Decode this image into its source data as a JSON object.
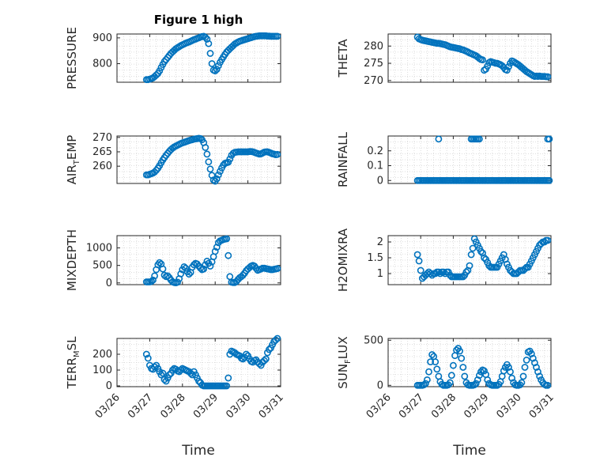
{
  "figure": {
    "title": "Figure 1 high",
    "xlabel": "Time",
    "marker_color": "#0072BD",
    "marker": "circle-open",
    "grid": "minor dotted",
    "x_ticks": [
      "03/26",
      "03/27",
      "03/28",
      "03/29",
      "03/30",
      "03/31"
    ],
    "x_tick_rotation_deg": 45
  },
  "chart_data": [
    {
      "type": "scatter",
      "ylabel": "PRESSURE",
      "ylim": [
        728,
        915
      ],
      "yticks": [
        800,
        900
      ],
      "xlim": [
        0,
        5
      ],
      "x": [
        0.9,
        0.95,
        1.0,
        1.05,
        1.1,
        1.15,
        1.2,
        1.25,
        1.3,
        1.35,
        1.4,
        1.45,
        1.5,
        1.55,
        1.6,
        1.65,
        1.7,
        1.75,
        1.8,
        1.85,
        1.9,
        1.95,
        2.0,
        2.05,
        2.1,
        2.15,
        2.2,
        2.25,
        2.3,
        2.35,
        2.4,
        2.45,
        2.5,
        2.55,
        2.6,
        2.65,
        2.7,
        2.75,
        2.8,
        2.85,
        2.9,
        2.95,
        3.0,
        3.05,
        3.1,
        3.15,
        3.2,
        3.25,
        3.3,
        3.35,
        3.4,
        3.45,
        3.5,
        3.55,
        3.6,
        3.65,
        3.7,
        3.75,
        3.8,
        3.85,
        3.9,
        3.95,
        4.0,
        4.05,
        4.1,
        4.15,
        4.2,
        4.25,
        4.3,
        4.35,
        4.4,
        4.45,
        4.5,
        4.55,
        4.6,
        4.65,
        4.7,
        4.75,
        4.8,
        4.85,
        4.9
      ],
      "y": [
        738,
        738,
        740,
        742,
        745,
        750,
        756,
        762,
        772,
        785,
        797,
        808,
        816,
        824,
        832,
        840,
        846,
        852,
        858,
        862,
        866,
        870,
        873,
        876,
        879,
        882,
        884,
        887,
        890,
        893,
        895,
        898,
        900,
        903,
        905,
        906,
        902,
        895,
        878,
        840,
        800,
        775,
        772,
        778,
        792,
        805,
        816,
        826,
        836,
        845,
        852,
        858,
        864,
        870,
        876,
        880,
        884,
        887,
        889,
        891,
        893,
        895,
        897,
        899,
        901,
        903,
        905,
        906,
        907,
        908,
        908,
        908,
        908,
        908,
        907,
        907,
        906,
        906,
        906,
        906,
        906
      ]
    },
    {
      "type": "scatter",
      "ylabel": "THETA",
      "ylim": [
        269.5,
        283.5
      ],
      "yticks": [
        270,
        275,
        280
      ],
      "xlim": [
        0,
        5
      ],
      "x": [
        0.9,
        0.95,
        1.0,
        1.05,
        1.1,
        1.15,
        1.2,
        1.25,
        1.3,
        1.35,
        1.4,
        1.45,
        1.5,
        1.55,
        1.6,
        1.65,
        1.7,
        1.75,
        1.8,
        1.85,
        1.9,
        1.95,
        2.0,
        2.05,
        2.1,
        2.15,
        2.2,
        2.25,
        2.3,
        2.35,
        2.4,
        2.45,
        2.5,
        2.55,
        2.6,
        2.65,
        2.7,
        2.75,
        2.8,
        2.85,
        2.9,
        2.95,
        3.0,
        3.05,
        3.1,
        3.15,
        3.2,
        3.25,
        3.3,
        3.35,
        3.4,
        3.45,
        3.5,
        3.55,
        3.6,
        3.65,
        3.7,
        3.75,
        3.8,
        3.85,
        3.9,
        3.95,
        4.0,
        4.05,
        4.1,
        4.15,
        4.2,
        4.25,
        4.3,
        4.35,
        4.4,
        4.45,
        4.5,
        4.55,
        4.6,
        4.65,
        4.7,
        4.75,
        4.8,
        4.85,
        4.9
      ],
      "y": [
        282.6,
        282.1,
        281.9,
        281.7,
        281.6,
        281.5,
        281.4,
        281.3,
        281.2,
        281.1,
        281.0,
        280.9,
        280.8,
        280.8,
        280.7,
        280.6,
        280.5,
        280.4,
        280.2,
        280.0,
        279.8,
        279.7,
        279.6,
        279.5,
        279.4,
        279.3,
        279.2,
        279.0,
        278.9,
        278.7,
        278.5,
        278.3,
        278.0,
        277.8,
        277.6,
        277.4,
        277.2,
        276.8,
        276.4,
        276.1,
        276.0,
        273.0,
        273.3,
        274.2,
        275.2,
        275.5,
        275.3,
        275.2,
        275.0,
        275.0,
        274.8,
        274.6,
        274.3,
        273.8,
        273.2,
        273.0,
        274.0,
        275.0,
        275.7,
        275.5,
        275.2,
        274.9,
        274.6,
        274.2,
        273.8,
        273.4,
        273.0,
        272.6,
        272.3,
        272.0,
        271.7,
        271.4,
        271.2,
        271.3,
        271.2,
        271.3,
        271.2,
        271.2,
        271.2,
        271.1,
        271.1
      ]
    },
    {
      "type": "scatter",
      "ylabel": "AIR_TEMP",
      "ylim": [
        254,
        270.5
      ],
      "yticks": [
        260,
        265,
        270
      ],
      "xlim": [
        0,
        5
      ],
      "x": [
        0.9,
        0.95,
        1.0,
        1.05,
        1.1,
        1.15,
        1.2,
        1.25,
        1.3,
        1.35,
        1.4,
        1.45,
        1.5,
        1.55,
        1.6,
        1.65,
        1.7,
        1.75,
        1.8,
        1.85,
        1.9,
        1.95,
        2.0,
        2.05,
        2.1,
        2.15,
        2.2,
        2.25,
        2.3,
        2.35,
        2.4,
        2.45,
        2.5,
        2.55,
        2.6,
        2.65,
        2.7,
        2.75,
        2.8,
        2.85,
        2.9,
        2.95,
        3.0,
        3.05,
        3.1,
        3.15,
        3.2,
        3.25,
        3.3,
        3.35,
        3.4,
        3.45,
        3.5,
        3.55,
        3.6,
        3.65,
        3.7,
        3.75,
        3.8,
        3.85,
        3.9,
        3.95,
        4.0,
        4.05,
        4.1,
        4.15,
        4.2,
        4.25,
        4.3,
        4.35,
        4.4,
        4.45,
        4.5,
        4.55,
        4.6,
        4.65,
        4.7,
        4.75,
        4.8,
        4.85,
        4.9
      ],
      "y": [
        257.0,
        257.0,
        257.2,
        257.4,
        257.6,
        258.0,
        258.6,
        259.3,
        260.2,
        261.2,
        262.2,
        263.0,
        263.8,
        264.5,
        265.2,
        265.8,
        266.3,
        266.7,
        267.0,
        267.3,
        267.6,
        267.9,
        268.1,
        268.3,
        268.5,
        268.7,
        268.9,
        269.1,
        269.2,
        269.4,
        269.5,
        269.6,
        269.7,
        269.6,
        269.2,
        268.2,
        266.5,
        264.2,
        261.5,
        259.0,
        256.8,
        255.2,
        254.8,
        255.6,
        257.0,
        258.2,
        259.4,
        260.4,
        261.0,
        261.2,
        261.4,
        262.5,
        263.8,
        264.5,
        264.8,
        264.9,
        265.0,
        265.0,
        265.0,
        265.0,
        265.0,
        265.0,
        265.0,
        265.1,
        265.1,
        265.0,
        264.8,
        264.6,
        264.4,
        264.2,
        264.3,
        264.6,
        264.9,
        265.0,
        265.0,
        264.8,
        264.6,
        264.3,
        264.2,
        264.0,
        264.1
      ]
    },
    {
      "type": "scatter",
      "ylabel": "RAINFALL",
      "ylim": [
        -0.02,
        0.3
      ],
      "yticks": [
        0,
        0.1,
        0.2
      ],
      "xlim": [
        0,
        5
      ],
      "baseline": {
        "value": 0,
        "x_from": 0.9,
        "x_to": 4.95,
        "step": 0.05
      },
      "x": [
        1.55,
        2.55,
        2.6,
        2.65,
        2.7,
        2.75,
        2.8,
        4.9,
        4.95
      ],
      "y": [
        0.28,
        0.28,
        0.28,
        0.28,
        0.28,
        0.28,
        0.28,
        0.28,
        0.28
      ]
    },
    {
      "type": "scatter",
      "ylabel": "MIXDEPTH",
      "ylim": [
        -50,
        1350
      ],
      "yticks": [
        0,
        500,
        1000
      ],
      "xlim": [
        0,
        5
      ],
      "x": [
        0.9,
        0.95,
        1.0,
        1.05,
        1.1,
        1.15,
        1.2,
        1.25,
        1.3,
        1.35,
        1.4,
        1.45,
        1.5,
        1.55,
        1.6,
        1.65,
        1.7,
        1.75,
        1.8,
        1.85,
        1.9,
        1.95,
        2.0,
        2.05,
        2.1,
        2.15,
        2.2,
        2.25,
        2.3,
        2.35,
        2.4,
        2.45,
        2.5,
        2.55,
        2.6,
        2.65,
        2.7,
        2.75,
        2.8,
        2.85,
        2.9,
        2.95,
        3.0,
        3.05,
        3.1,
        3.15,
        3.2,
        3.25,
        3.3,
        3.35,
        3.4,
        3.45,
        3.5,
        3.55,
        3.6,
        3.65,
        3.7,
        3.75,
        3.8,
        3.85,
        3.9,
        3.95,
        4.0,
        4.05,
        4.1,
        4.15,
        4.2,
        4.25,
        4.3,
        4.35,
        4.4,
        4.45,
        4.5,
        4.55,
        4.6,
        4.65,
        4.7,
        4.75,
        4.8,
        4.85,
        4.9
      ],
      "y": [
        30,
        30,
        30,
        40,
        80,
        200,
        380,
        520,
        580,
        540,
        400,
        220,
        180,
        200,
        150,
        80,
        30,
        10,
        5,
        20,
        120,
        260,
        380,
        460,
        420,
        320,
        250,
        300,
        450,
        520,
        560,
        540,
        480,
        420,
        380,
        400,
        520,
        620,
        560,
        480,
        600,
        750,
        900,
        1020,
        1150,
        1200,
        1220,
        1240,
        1250,
        1260,
        780,
        180,
        20,
        10,
        10,
        40,
        100,
        150,
        180,
        220,
        280,
        350,
        400,
        440,
        480,
        500,
        480,
        420,
        360,
        380,
        400,
        420,
        420,
        410,
        400,
        390,
        380,
        380,
        390,
        400,
        410
      ]
    },
    {
      "type": "scatter",
      "ylabel": "H2OMIXRA",
      "ylim": [
        0.65,
        2.2
      ],
      "yticks": [
        1,
        1.5,
        2
      ],
      "xlim": [
        0,
        5
      ],
      "x": [
        0.9,
        0.95,
        1.0,
        1.05,
        1.1,
        1.15,
        1.2,
        1.25,
        1.3,
        1.35,
        1.4,
        1.45,
        1.5,
        1.55,
        1.6,
        1.65,
        1.7,
        1.75,
        1.8,
        1.85,
        1.9,
        1.95,
        2.0,
        2.05,
        2.1,
        2.15,
        2.2,
        2.25,
        2.3,
        2.35,
        2.4,
        2.45,
        2.5,
        2.55,
        2.6,
        2.65,
        2.7,
        2.75,
        2.8,
        2.85,
        2.9,
        2.95,
        3.0,
        3.05,
        3.1,
        3.15,
        3.2,
        3.25,
        3.3,
        3.35,
        3.4,
        3.45,
        3.5,
        3.55,
        3.6,
        3.65,
        3.7,
        3.75,
        3.8,
        3.85,
        3.9,
        3.95,
        4.0,
        4.05,
        4.1,
        4.15,
        4.2,
        4.25,
        4.3,
        4.35,
        4.4,
        4.45,
        4.5,
        4.55,
        4.6,
        4.65,
        4.7,
        4.75,
        4.8,
        4.85,
        4.9
      ],
      "y": [
        1.6,
        1.4,
        1.1,
        0.85,
        0.9,
        0.95,
        1.0,
        1.05,
        1.0,
        0.95,
        1.0,
        1.0,
        1.05,
        1.05,
        1.0,
        1.05,
        1.05,
        1.0,
        1.05,
        1.05,
        0.95,
        0.9,
        0.9,
        0.9,
        0.9,
        0.9,
        0.9,
        0.9,
        0.9,
        0.95,
        1.05,
        1.1,
        1.25,
        1.6,
        1.8,
        2.1,
        2.0,
        1.9,
        1.8,
        1.7,
        1.65,
        1.5,
        1.45,
        1.35,
        1.25,
        1.2,
        1.2,
        1.2,
        1.2,
        1.2,
        1.3,
        1.4,
        1.5,
        1.6,
        1.45,
        1.3,
        1.2,
        1.1,
        1.05,
        1.0,
        1.0,
        1.0,
        1.05,
        1.1,
        1.1,
        1.1,
        1.15,
        1.2,
        1.2,
        1.3,
        1.4,
        1.5,
        1.6,
        1.7,
        1.8,
        1.9,
        1.95,
        2.0,
        2.0,
        2.05,
        2.05
      ]
    },
    {
      "type": "scatter",
      "ylabel": "TERR_MSL",
      "ylim": [
        -5,
        300
      ],
      "yticks": [
        0,
        100,
        200
      ],
      "xlim": [
        0,
        5
      ],
      "x": [
        0.9,
        0.95,
        1.0,
        1.05,
        1.1,
        1.15,
        1.2,
        1.25,
        1.3,
        1.35,
        1.4,
        1.45,
        1.5,
        1.55,
        1.6,
        1.65,
        1.7,
        1.75,
        1.8,
        1.85,
        1.9,
        1.95,
        2.0,
        2.05,
        2.1,
        2.15,
        2.2,
        2.25,
        2.3,
        2.35,
        2.4,
        2.45,
        2.5,
        2.55,
        2.6,
        2.65,
        2.7,
        2.75,
        2.8,
        2.85,
        2.9,
        2.95,
        3.0,
        3.05,
        3.1,
        3.15,
        3.2,
        3.25,
        3.3,
        3.35,
        3.4,
        3.45,
        3.5,
        3.55,
        3.6,
        3.65,
        3.7,
        3.75,
        3.8,
        3.85,
        3.9,
        3.95,
        4.0,
        4.05,
        4.1,
        4.15,
        4.2,
        4.25,
        4.3,
        4.35,
        4.4,
        4.45,
        4.5,
        4.55,
        4.6,
        4.65,
        4.7,
        4.75,
        4.8,
        4.85,
        4.9
      ],
      "y": [
        200,
        175,
        130,
        110,
        105,
        120,
        130,
        110,
        90,
        70,
        80,
        40,
        30,
        50,
        70,
        80,
        100,
        110,
        105,
        95,
        90,
        100,
        110,
        105,
        100,
        95,
        90,
        80,
        70,
        90,
        70,
        50,
        30,
        20,
        5,
        0,
        0,
        0,
        0,
        0,
        0,
        0,
        0,
        0,
        0,
        0,
        0,
        0,
        0,
        0,
        50,
        200,
        220,
        215,
        210,
        200,
        195,
        190,
        175,
        170,
        180,
        200,
        190,
        170,
        155,
        150,
        160,
        165,
        150,
        140,
        130,
        150,
        160,
        170,
        210,
        230,
        240,
        260,
        280,
        290,
        300
      ]
    },
    {
      "type": "scatter",
      "ylabel": "SUN_FLUX",
      "ylim": [
        -15,
        520
      ],
      "yticks": [
        0,
        500
      ],
      "xlim": [
        0,
        5
      ],
      "x": [
        0.9,
        0.95,
        1.0,
        1.05,
        1.1,
        1.15,
        1.2,
        1.25,
        1.3,
        1.35,
        1.4,
        1.45,
        1.5,
        1.55,
        1.6,
        1.65,
        1.7,
        1.75,
        1.8,
        1.85,
        1.9,
        1.95,
        2.0,
        2.05,
        2.1,
        2.15,
        2.2,
        2.25,
        2.3,
        2.35,
        2.4,
        2.45,
        2.5,
        2.55,
        2.6,
        2.65,
        2.7,
        2.75,
        2.8,
        2.85,
        2.9,
        2.95,
        3.0,
        3.05,
        3.1,
        3.15,
        3.2,
        3.25,
        3.3,
        3.35,
        3.4,
        3.45,
        3.5,
        3.55,
        3.6,
        3.65,
        3.7,
        3.75,
        3.8,
        3.85,
        3.9,
        3.95,
        4.0,
        4.05,
        4.1,
        4.15,
        4.2,
        4.25,
        4.3,
        4.35,
        4.4,
        4.45,
        4.5,
        4.55,
        4.6,
        4.65,
        4.7,
        4.75,
        4.8,
        4.85,
        4.9
      ],
      "y": [
        0,
        0,
        0,
        0,
        5,
        20,
        60,
        150,
        260,
        340,
        320,
        260,
        180,
        100,
        40,
        10,
        0,
        0,
        0,
        5,
        30,
        110,
        220,
        330,
        390,
        410,
        380,
        300,
        200,
        100,
        30,
        5,
        0,
        0,
        0,
        5,
        20,
        60,
        110,
        150,
        170,
        160,
        120,
        60,
        20,
        5,
        0,
        0,
        0,
        0,
        10,
        40,
        100,
        160,
        200,
        230,
        200,
        150,
        80,
        30,
        5,
        0,
        0,
        5,
        30,
        100,
        200,
        280,
        370,
        380,
        350,
        300,
        250,
        200,
        150,
        100,
        60,
        30,
        10,
        0,
        0
      ]
    }
  ]
}
